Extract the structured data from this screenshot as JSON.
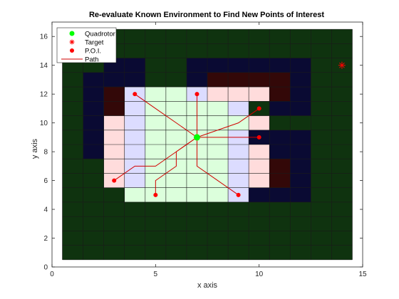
{
  "chart_data": {
    "type": "scatter",
    "title": "Re-evaluate Known Environment to Find New Points of Interest",
    "xlabel": "x axis",
    "ylabel": "y axis",
    "xlim": [
      0,
      15
    ],
    "ylim": [
      0,
      17
    ],
    "xticks": [
      0,
      5,
      10,
      15
    ],
    "yticks": [
      0,
      2,
      4,
      6,
      8,
      10,
      12,
      14,
      16
    ],
    "grid": "cell grid, 1 unit cells from 0.5 to 14.5 (x) and 0.5 to 16.5 (y)",
    "legend_position": "top-left",
    "legend": [
      {
        "label": "Quadrotor",
        "marker": "dot",
        "color": "#00ff00"
      },
      {
        "label": "Target",
        "marker": "asterisk",
        "color": "#ff0000"
      },
      {
        "label": "P.O.I.",
        "marker": "dot",
        "color": "#ff0000"
      },
      {
        "label": "Path",
        "marker": "line",
        "color": "#d10000"
      }
    ],
    "colors": {
      "far": "#0f330f",
      "unexplored": "#0a0a33",
      "obstacle": "#330808",
      "known_free": "#dcffdc",
      "frontier_blue": "#dcdcff",
      "frontier_pink": "#ffdcdc",
      "quadrotor": "#00ff00",
      "target": "#ff0000",
      "poi": "#ff0000",
      "path": "#d10000",
      "gridline": "#1a1a1a"
    },
    "map_cells": {
      "unexplored": [
        [
          2,
          8
        ],
        [
          2,
          9
        ],
        [
          2,
          10
        ],
        [
          2,
          11
        ],
        [
          2,
          12
        ],
        [
          2,
          13
        ],
        [
          3,
          13
        ],
        [
          3,
          14
        ],
        [
          4,
          14
        ],
        [
          4,
          13
        ],
        [
          7,
          13
        ],
        [
          7,
          14
        ],
        [
          8,
          14
        ],
        [
          9,
          14
        ],
        [
          10,
          14
        ],
        [
          11,
          14
        ],
        [
          12,
          14
        ],
        [
          12,
          13
        ],
        [
          12,
          12
        ],
        [
          12,
          11
        ],
        [
          11,
          11
        ],
        [
          10,
          9
        ],
        [
          11,
          9
        ],
        [
          11,
          8
        ],
        [
          12,
          9
        ],
        [
          12,
          8
        ],
        [
          12,
          7
        ],
        [
          12,
          6
        ],
        [
          12,
          5
        ],
        [
          10,
          5
        ],
        [
          11,
          5
        ]
      ],
      "obstacle": [
        [
          3,
          12
        ],
        [
          3,
          11
        ],
        [
          8,
          13
        ],
        [
          9,
          13
        ],
        [
          10,
          13
        ],
        [
          11,
          13
        ],
        [
          11,
          12
        ],
        [
          11,
          7
        ],
        [
          11,
          6
        ]
      ],
      "known_free": [
        [
          4,
          5
        ],
        [
          5,
          5
        ],
        [
          6,
          5
        ],
        [
          7,
          5
        ],
        [
          8,
          5
        ],
        [
          5,
          6
        ],
        [
          6,
          6
        ],
        [
          7,
          6
        ],
        [
          8,
          6
        ],
        [
          5,
          7
        ],
        [
          6,
          7
        ],
        [
          7,
          7
        ],
        [
          8,
          7
        ],
        [
          5,
          8
        ],
        [
          6,
          8
        ],
        [
          7,
          8
        ],
        [
          8,
          8
        ],
        [
          5,
          9
        ],
        [
          6,
          9
        ],
        [
          7,
          9
        ],
        [
          8,
          9
        ],
        [
          5,
          10
        ],
        [
          6,
          10
        ],
        [
          7,
          10
        ],
        [
          8,
          10
        ],
        [
          9,
          10
        ],
        [
          5,
          11
        ],
        [
          6,
          11
        ],
        [
          7,
          11
        ],
        [
          8,
          11
        ],
        [
          5,
          12
        ],
        [
          6,
          12
        ]
      ],
      "frontier_blue": [
        [
          4,
          12
        ],
        [
          4,
          11
        ],
        [
          4,
          10
        ],
        [
          4,
          9
        ],
        [
          4,
          8
        ],
        [
          4,
          7
        ],
        [
          4,
          6
        ],
        [
          7,
          12
        ],
        [
          9,
          11
        ],
        [
          9,
          5
        ],
        [
          9,
          6
        ],
        [
          9,
          7
        ],
        [
          9,
          8
        ],
        [
          9,
          9
        ]
      ],
      "frontier_pink": [
        [
          3,
          10
        ],
        [
          3,
          9
        ],
        [
          3,
          8
        ],
        [
          3,
          7
        ],
        [
          3,
          6
        ],
        [
          8,
          12
        ],
        [
          9,
          12
        ],
        [
          10,
          12
        ],
        [
          10,
          10
        ],
        [
          10,
          8
        ],
        [
          10,
          7
        ],
        [
          10,
          6
        ]
      ]
    },
    "quadrotor": {
      "x": 7,
      "y": 9
    },
    "target": {
      "x": 14,
      "y": 14
    },
    "poi": [
      {
        "x": 4,
        "y": 12
      },
      {
        "x": 7,
        "y": 12
      },
      {
        "x": 10,
        "y": 11
      },
      {
        "x": 10,
        "y": 9
      },
      {
        "x": 9,
        "y": 5
      },
      {
        "x": 5,
        "y": 5
      },
      {
        "x": 3,
        "y": 6
      }
    ],
    "paths": [
      [
        [
          7,
          9
        ],
        [
          6,
          10
        ],
        [
          5,
          11
        ],
        [
          4,
          12
        ]
      ],
      [
        [
          7,
          9
        ],
        [
          7,
          12
        ]
      ],
      [
        [
          7,
          9
        ],
        [
          8,
          9.5
        ],
        [
          9,
          10
        ],
        [
          10,
          11
        ]
      ],
      [
        [
          7,
          9
        ],
        [
          8,
          9
        ],
        [
          10,
          9
        ]
      ],
      [
        [
          7,
          9
        ],
        [
          7,
          7
        ],
        [
          8,
          6
        ],
        [
          9,
          5
        ]
      ],
      [
        [
          7,
          9
        ],
        [
          6,
          8
        ],
        [
          6,
          7
        ],
        [
          5,
          6
        ],
        [
          5,
          5
        ]
      ],
      [
        [
          7,
          9
        ],
        [
          6,
          8
        ],
        [
          5,
          7
        ],
        [
          4,
          7
        ],
        [
          3,
          6
        ]
      ]
    ]
  }
}
